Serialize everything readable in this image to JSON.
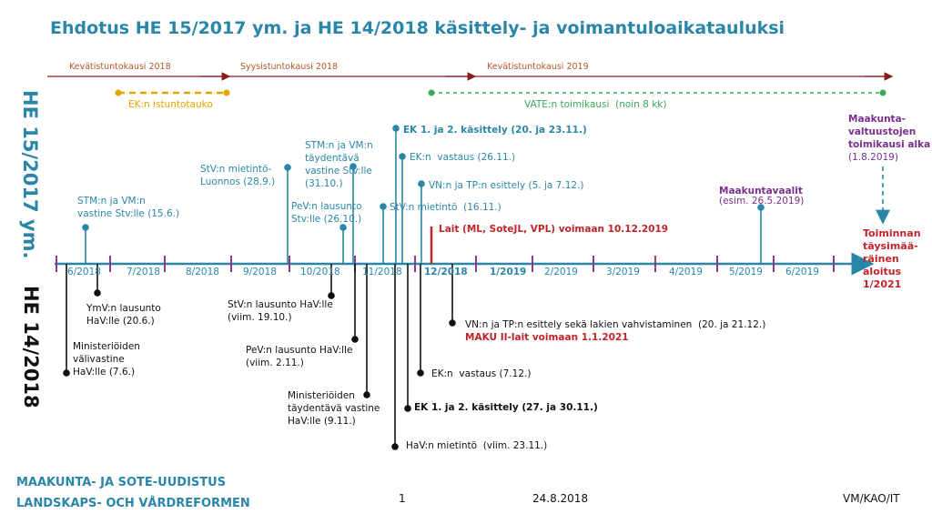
{
  "title": "Ehdotus HE 15/2017 ym. ja HE 14/2018 käsittely- ja voimantuloaikatauluksi",
  "side_labels": {
    "top": "HE 15/2017 ym.",
    "bottom": "HE 14/2018"
  },
  "session_periods": [
    "Kevätistuntokausi 2018",
    "Syysistuntokausi 2018",
    "Kevätistuntokausi 2019"
  ],
  "breaks": {
    "ek": "EK:n istuntotauko",
    "vate": "VATE:n toimikausi  (noin 8 kk)"
  },
  "months": [
    "6/2018",
    "7/2018",
    "8/2018",
    "9/2018",
    "10/2018",
    "11/2018",
    "12/2018",
    "1/2019",
    "2/2019",
    "3/2019",
    "4/2019",
    "5/2019",
    "6/2019"
  ],
  "events_top": [
    {
      "text": "STM:n ja VM:n\nvastine Stv:lle (15.6.)"
    },
    {
      "text": "StV:n mietintö-\nLuonnos (28.9.)"
    },
    {
      "text": "STM:n ja VM:n\ntäydentävä\nvastine Stv:lle\n(31.10.)"
    },
    {
      "text": "PeV:n lausunto\nStv:lle (26.10.)"
    },
    {
      "text": "StV:n mietintö  (16.11.)"
    },
    {
      "text": "EK 1. ja 2. käsittely (20. ja 23.11.)"
    },
    {
      "text": "EK:n  vastaus (26.11.)"
    },
    {
      "text": "VN:n ja TP:n esittely (5. ja 7.12.)"
    },
    {
      "text": "Lait (ML, SoteJL, VPL) voimaan 10.12.2019"
    },
    {
      "text": "Maakuntavaalit"
    },
    {
      "text": "(esim. 26.5.2019)"
    },
    {
      "text": "Maakunta-\nvaltuustojen\ntoimikausi alka"
    },
    {
      "text": "(1.8.2019)"
    },
    {
      "text": "Toiminnan\ntäysimää-\nräinen\naloitus\n1/2021"
    }
  ],
  "events_bottom": [
    {
      "text": "YmV:n lausunto\nHaV:lle (20.6.)"
    },
    {
      "text": "Ministeriöiden\nvälivastine\nHaV:lle (7.6.)"
    },
    {
      "text": "StV:n lausunto HaV:lle\n(viim. 19.10.)"
    },
    {
      "text": "PeV:n lausunto HaV:lle\n(viim. 2.11.)"
    },
    {
      "text": "Ministeriöiden\ntäydentävä vastine\nHaV:lle (9.11.)"
    },
    {
      "text": "VN:n ja TP:n esittely sekä lakien vahvistaminen  (20. ja 21.12.)"
    },
    {
      "text": "MAKU II-lait voimaan 1.1.2021"
    },
    {
      "text": "EK:n  vastaus (7.12.)"
    },
    {
      "text": "EK 1. ja 2. käsittely (27. ja 30.11.)"
    },
    {
      "text": "HaV:n mietintö  (viim. 23.11.)"
    }
  ],
  "footer": {
    "line1": "MAAKUNTA- JA SOTE-UUDISTUS",
    "line2": "LANDSKAPS- OCH VÅRDREFORMEN",
    "page": "1",
    "date": "24.8.2018",
    "code": "VM/KAO/IT"
  },
  "colors": {
    "blue": "#2a86a8",
    "red": "#c0242a",
    "purple": "#7a2f8e",
    "green": "#3aa85a",
    "yellow": "#e4a500",
    "brown": "#b2552a"
  }
}
